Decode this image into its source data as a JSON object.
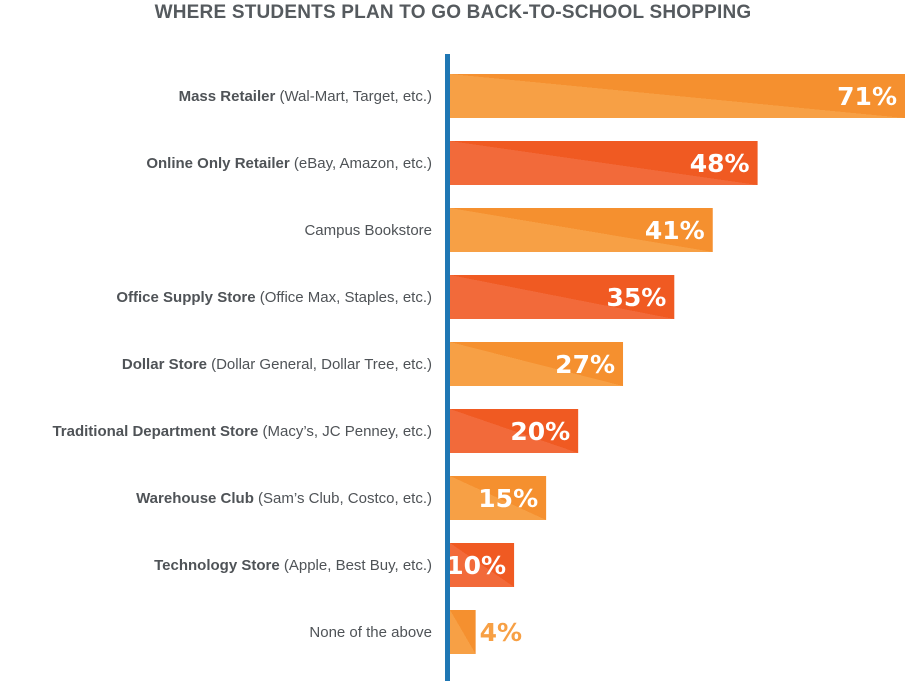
{
  "chart_data": {
    "type": "bar",
    "orientation": "horizontal",
    "title": "WHERE STUDENTS PLAN TO GO BACK-TO-SCHOOL SHOPPING",
    "xlabel": "",
    "ylabel": "",
    "xlim": [
      0,
      71
    ],
    "grid": false,
    "legend": "none",
    "categories": [
      {
        "bold": "Mass Retailer",
        "rest": " (Wal-Mart, Target, etc.)"
      },
      {
        "bold": "Online Only Retailer",
        "rest": " (eBay, Amazon, etc.)"
      },
      {
        "bold": "",
        "rest": "Campus Bookstore"
      },
      {
        "bold": "Office Supply Store",
        "rest": " (Office Max, Staples, etc.)"
      },
      {
        "bold": "Dollar Store",
        "rest": " (Dollar General, Dollar Tree, etc.)"
      },
      {
        "bold": "Traditional Department Store",
        "rest": " (Macy’s, JC Penney, etc.)"
      },
      {
        "bold": "Warehouse Club",
        "rest": " (Sam’s Club, Costco, etc.)"
      },
      {
        "bold": "Technology Store",
        "rest": " (Apple, Best Buy, etc.)"
      },
      {
        "bold": "",
        "rest": "None of the above"
      }
    ],
    "values": [
      71,
      48,
      41,
      35,
      27,
      20,
      15,
      10,
      4
    ],
    "value_labels": [
      "71%",
      "48%",
      "41%",
      "35%",
      "27%",
      "20%",
      "15%",
      "10%",
      "4%"
    ],
    "colors": {
      "light_bar": "#f7a045",
      "light_bar_shade": "#f5902f",
      "dark_bar": "#f26a3a",
      "dark_bar_shade": "#f05a22",
      "axis": "#1f77b4",
      "label": "#4f5357",
      "title": "#555a5e",
      "value_on_bar": "#ffffff",
      "value_outside": "#f7a045"
    }
  }
}
